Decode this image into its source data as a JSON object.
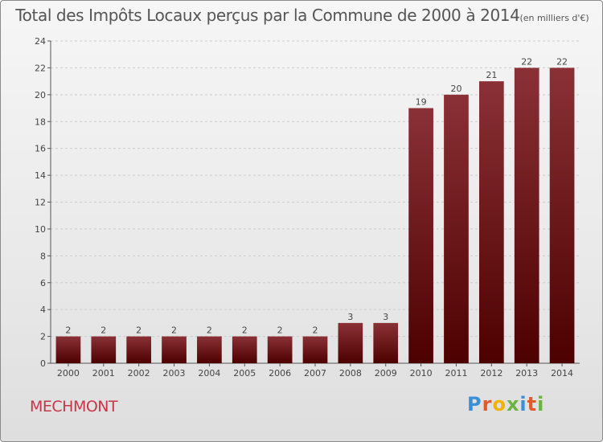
{
  "title": "Total des Impôts Locaux perçus par la Commune de 2000 à 2014",
  "title_unit": "(en milliers d'€)",
  "commune": "MECHMONT",
  "logo": {
    "letters": [
      "P",
      "r",
      "o",
      "x",
      "i",
      "t",
      "i"
    ],
    "colors": [
      "#3b8fd6",
      "#e05a2b",
      "#f0b400",
      "#6cb33f",
      "#3b8fd6",
      "#e05a2b",
      "#6cb33f"
    ]
  },
  "chart_data": {
    "type": "bar",
    "categories": [
      "2000",
      "2001",
      "2002",
      "2003",
      "2004",
      "2005",
      "2006",
      "2007",
      "2008",
      "2009",
      "2010",
      "2011",
      "2012",
      "2013",
      "2014"
    ],
    "values": [
      2,
      2,
      2,
      2,
      2,
      2,
      2,
      2,
      3,
      3,
      19,
      20,
      21,
      22,
      22
    ],
    "ylim": [
      0,
      24
    ],
    "yticks": [
      0,
      2,
      4,
      6,
      8,
      10,
      12,
      14,
      16,
      18,
      20,
      22,
      24
    ],
    "grid": true,
    "bar_color_top": "#8a3136",
    "bar_color_bottom": "#4d0000"
  }
}
